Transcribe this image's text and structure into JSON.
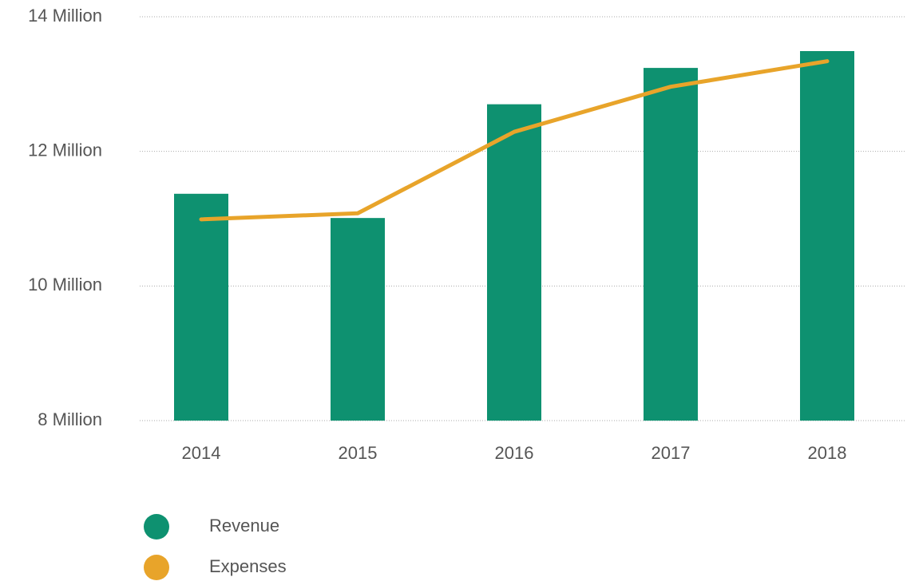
{
  "chart_data": {
    "type": "bar",
    "categories": [
      "2014",
      "2015",
      "2016",
      "2017",
      "2018"
    ],
    "series": [
      {
        "name": "Revenue",
        "type": "bar",
        "color": "#0e9170",
        "values": [
          11.37,
          11.01,
          12.7,
          13.24,
          13.49
        ]
      },
      {
        "name": "Expenses",
        "type": "line",
        "color": "#e8a42a",
        "values": [
          10.99,
          11.08,
          12.29,
          12.96,
          13.34
        ]
      }
    ],
    "ylim": [
      8,
      14
    ],
    "yticks": [
      {
        "value": 8,
        "label": "8 Million"
      },
      {
        "value": 10,
        "label": "10 Million"
      },
      {
        "value": 12,
        "label": "12 Million"
      },
      {
        "value": 14,
        "label": "14 Million"
      }
    ],
    "grid": true,
    "legend": "bottom-left"
  }
}
